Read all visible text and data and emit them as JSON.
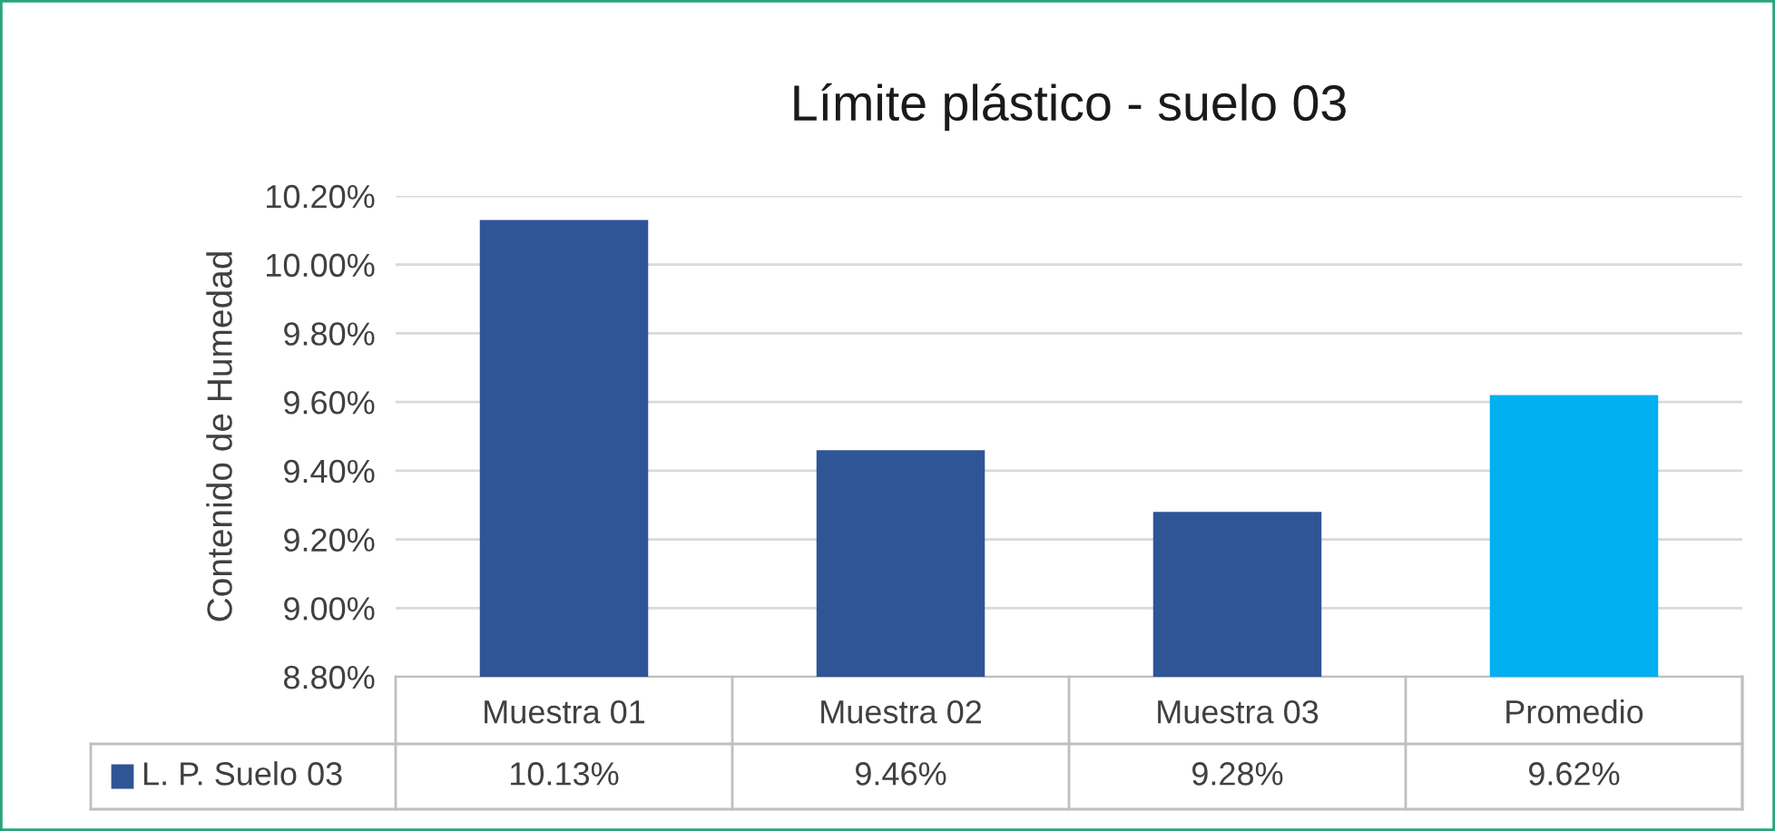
{
  "chart_data": {
    "type": "bar",
    "title": "Límite plástico - suelo 03",
    "ylabel": "Contenido de Humedad",
    "categories": [
      "Muestra 01",
      "Muestra 02",
      "Muestra 03",
      "Promedio"
    ],
    "series": [
      {
        "name": "L. P. Suelo 03",
        "color": "#2f5597",
        "colors": [
          "#2f5597",
          "#2f5597",
          "#2f5597",
          "#00b0f0"
        ],
        "values": [
          10.13,
          9.46,
          9.28,
          9.62
        ],
        "value_labels": [
          "10.13%",
          "9.46%",
          "9.28%",
          "9.62%"
        ]
      }
    ],
    "ylim": [
      8.8,
      10.2
    ],
    "yticks": [
      {
        "value": 8.8,
        "label": "8.80%"
      },
      {
        "value": 9.0,
        "label": "9.00%"
      },
      {
        "value": 9.2,
        "label": "9.20%"
      },
      {
        "value": 9.4,
        "label": "9.40%"
      },
      {
        "value": 9.6,
        "label": "9.60%"
      },
      {
        "value": 9.8,
        "label": "9.80%"
      },
      {
        "value": 10.0,
        "label": "10.00%"
      },
      {
        "value": 10.2,
        "label": "10.20%"
      }
    ],
    "grid": "y",
    "legend": "bottom left"
  }
}
